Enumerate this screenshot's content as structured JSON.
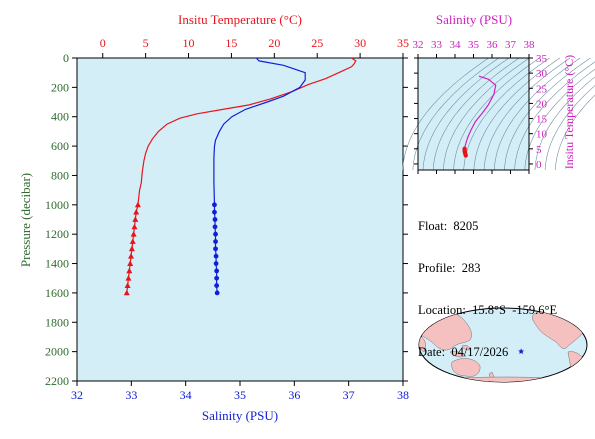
{
  "colors": {
    "temperature": "#e8141c",
    "salinity": "#1020d8",
    "ts_axis": "#d020c0",
    "pressure_axis": "#2e6b2e",
    "plot_background": "#d4eef8",
    "land": "#f4c0c0",
    "ocean": "#d4eef8",
    "float_marker": "#1020d8"
  },
  "float_info": {
    "float": "Float:  8205",
    "profile": "Profile:  283",
    "location": "Location:  15.8°S  -159.6°E",
    "date": "Date:  04/17/2026"
  },
  "chart_data": [
    {
      "type": "line",
      "role": "profile",
      "ylabel": "Pressure (decibar)",
      "ylim": [
        2200,
        0
      ],
      "y_ticks": [
        0,
        200,
        400,
        600,
        800,
        1000,
        1200,
        1400,
        1600,
        1800,
        2000,
        2200
      ],
      "grid": false,
      "axes": {
        "temperature": {
          "label": "Insitu Temperature (°C)",
          "position": "top",
          "range": [
            -3,
            35
          ],
          "ticks": [
            0,
            5,
            10,
            15,
            20,
            25,
            30,
            35
          ]
        },
        "salinity": {
          "label": "Salinity (PSU)",
          "position": "bottom",
          "range": [
            32,
            38
          ],
          "ticks": [
            32,
            33,
            34,
            35,
            36,
            37,
            38
          ]
        }
      },
      "series": [
        {
          "axis": "temperature",
          "marker": "triangle",
          "points": [
            [
              29.0,
              0
            ],
            [
              29.5,
              20
            ],
            [
              29.3,
              40
            ],
            [
              29.0,
              60
            ],
            [
              27.5,
              100
            ],
            [
              26.0,
              140
            ],
            [
              24.0,
              180
            ],
            [
              22.0,
              230
            ],
            [
              19.5,
              280
            ],
            [
              17.0,
              320
            ],
            [
              14.0,
              350
            ],
            [
              11.0,
              380
            ],
            [
              9.0,
              410
            ],
            [
              7.5,
              450
            ],
            [
              6.5,
              500
            ],
            [
              5.8,
              550
            ],
            [
              5.3,
              600
            ],
            [
              5.0,
              650
            ],
            [
              4.8,
              700
            ],
            [
              4.6,
              780
            ],
            [
              4.5,
              850
            ],
            [
              4.3,
              900
            ],
            [
              4.1,
              1000
            ],
            [
              3.9,
              1050
            ],
            [
              3.8,
              1100
            ],
            [
              3.7,
              1150
            ],
            [
              3.6,
              1200
            ],
            [
              3.5,
              1250
            ],
            [
              3.4,
              1300
            ],
            [
              3.3,
              1350
            ],
            [
              3.2,
              1400
            ],
            [
              3.1,
              1450
            ],
            [
              3.0,
              1500
            ],
            [
              2.9,
              1550
            ],
            [
              2.8,
              1600
            ]
          ],
          "marked_from": 1000
        },
        {
          "axis": "salinity",
          "marker": "circle",
          "points": [
            [
              35.3,
              0
            ],
            [
              35.35,
              20
            ],
            [
              35.8,
              50
            ],
            [
              36.2,
              100
            ],
            [
              36.2,
              150
            ],
            [
              36.1,
              200
            ],
            [
              35.8,
              260
            ],
            [
              35.5,
              300
            ],
            [
              35.1,
              350
            ],
            [
              34.85,
              400
            ],
            [
              34.7,
              450
            ],
            [
              34.62,
              500
            ],
            [
              34.55,
              560
            ],
            [
              34.53,
              600
            ],
            [
              34.52,
              680
            ],
            [
              34.52,
              750
            ],
            [
              34.52,
              850
            ],
            [
              34.53,
              1000
            ],
            [
              34.53,
              1050
            ],
            [
              34.54,
              1100
            ],
            [
              34.54,
              1150
            ],
            [
              34.55,
              1200
            ],
            [
              34.55,
              1250
            ],
            [
              34.55,
              1300
            ],
            [
              34.56,
              1350
            ],
            [
              34.56,
              1400
            ],
            [
              34.57,
              1450
            ],
            [
              34.57,
              1500
            ],
            [
              34.57,
              1550
            ],
            [
              34.58,
              1600
            ]
          ],
          "marked_from": 1000
        }
      ]
    },
    {
      "type": "line",
      "role": "ts-diagram",
      "title": "Salinity (PSU)",
      "xlabel": "Salinity (PSU)",
      "ylabel": "Insitu Temperature (°C)",
      "xlim": [
        32,
        38
      ],
      "ylim": [
        -2,
        35
      ],
      "x_ticks": [
        32,
        33,
        34,
        35,
        36,
        37,
        38
      ],
      "y_ticks": [
        0,
        5,
        10,
        15,
        20,
        25,
        30,
        35
      ],
      "density_contours": true,
      "series": [
        {
          "points": [
            [
              35.3,
              29.0
            ],
            [
              35.8,
              28.0
            ],
            [
              36.2,
              26.0
            ],
            [
              36.1,
              23.0
            ],
            [
              35.8,
              19.5
            ],
            [
              35.5,
              17.0
            ],
            [
              35.1,
              14.0
            ],
            [
              34.85,
              11.0
            ],
            [
              34.7,
              9.0
            ],
            [
              34.62,
              7.5
            ],
            [
              34.55,
              6.0
            ],
            [
              34.52,
              5.0
            ],
            [
              34.52,
              4.5
            ],
            [
              34.53,
              4.0
            ],
            [
              34.55,
              3.5
            ],
            [
              34.58,
              2.8
            ]
          ]
        }
      ]
    }
  ],
  "map": {
    "float_longitude": -159.6,
    "float_latitude": -15.8
  }
}
